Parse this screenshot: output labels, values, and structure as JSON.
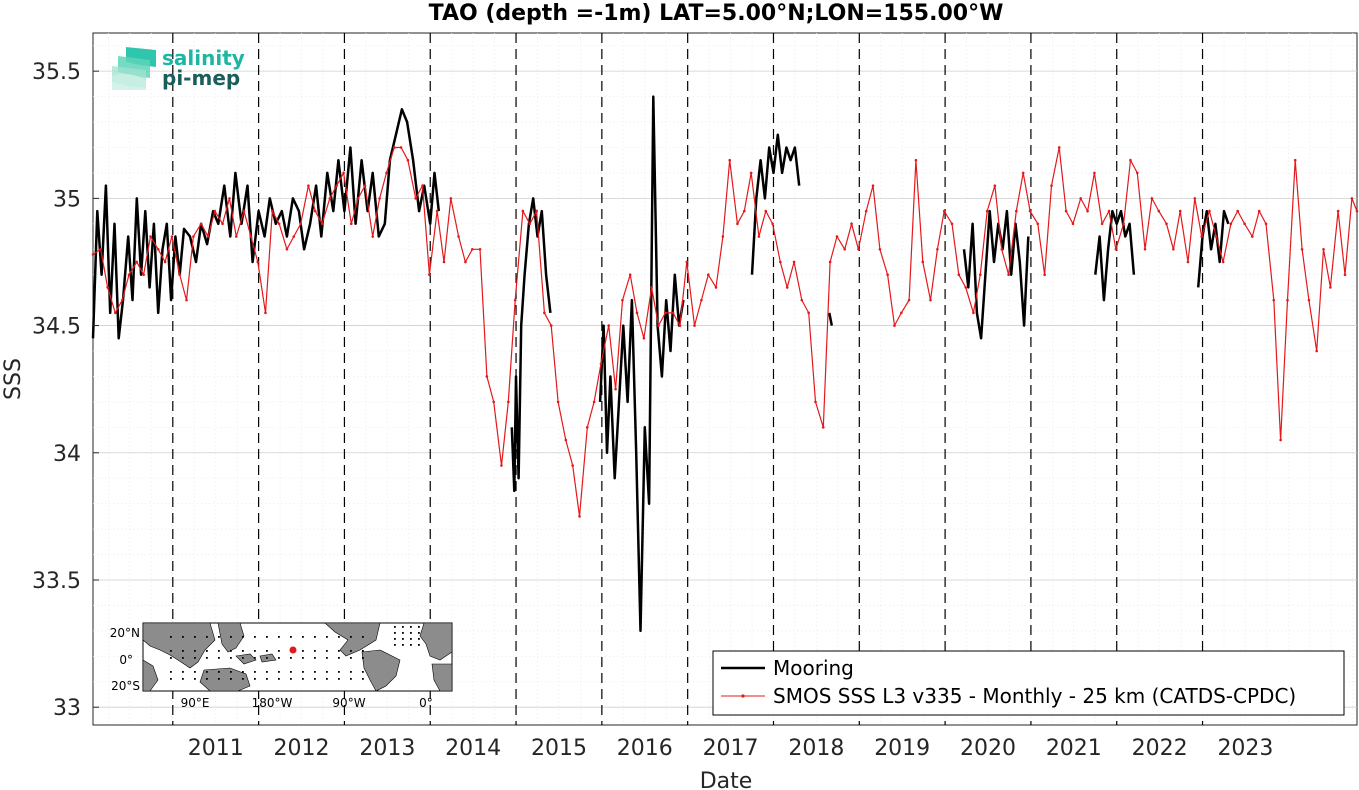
{
  "chart_data": {
    "type": "line",
    "title": "TAO (depth =-1m) LAT=5.00°N;LON=155.00°W",
    "xlabel": "Date",
    "ylabel": "SSS",
    "xlim": [
      2010.07,
      2024.8
    ],
    "ylim": [
      32.93,
      35.65
    ],
    "yticks": [
      33,
      33.5,
      34,
      34.5,
      35,
      35.5
    ],
    "xticks": [
      "2011",
      "2012",
      "2013",
      "2014",
      "2015",
      "2016",
      "2017",
      "2018",
      "2019",
      "2020",
      "2021",
      "2022",
      "2023"
    ],
    "grid": true,
    "legend_position": "bottom-right",
    "series": [
      {
        "name": "Mooring",
        "color": "#000000",
        "segments": [
          [
            [
              2010.07,
              34.45
            ],
            [
              2010.12,
              34.95
            ],
            [
              2010.17,
              34.7
            ],
            [
              2010.22,
              35.05
            ],
            [
              2010.27,
              34.55
            ],
            [
              2010.32,
              34.9
            ],
            [
              2010.37,
              34.45
            ],
            [
              2010.42,
              34.6
            ],
            [
              2010.48,
              34.85
            ],
            [
              2010.53,
              34.6
            ],
            [
              2010.58,
              35.0
            ],
            [
              2010.63,
              34.7
            ],
            [
              2010.68,
              34.95
            ],
            [
              2010.73,
              34.65
            ],
            [
              2010.78,
              34.9
            ],
            [
              2010.83,
              34.55
            ],
            [
              2010.88,
              34.8
            ],
            [
              2010.93,
              34.9
            ],
            [
              2010.98,
              34.6
            ],
            [
              2011.03,
              34.85
            ],
            [
              2011.08,
              34.7
            ],
            [
              2011.13,
              34.88
            ],
            [
              2011.2,
              34.85
            ],
            [
              2011.27,
              34.75
            ],
            [
              2011.33,
              34.9
            ],
            [
              2011.4,
              34.82
            ],
            [
              2011.47,
              34.95
            ],
            [
              2011.53,
              34.9
            ],
            [
              2011.6,
              35.05
            ],
            [
              2011.67,
              34.85
            ],
            [
              2011.73,
              35.1
            ],
            [
              2011.8,
              34.9
            ],
            [
              2011.87,
              35.05
            ],
            [
              2011.93,
              34.75
            ],
            [
              2012.0,
              34.95
            ],
            [
              2012.07,
              34.85
            ],
            [
              2012.13,
              35.0
            ],
            [
              2012.2,
              34.9
            ],
            [
              2012.27,
              34.95
            ],
            [
              2012.33,
              34.85
            ],
            [
              2012.4,
              35.0
            ],
            [
              2012.47,
              34.95
            ],
            [
              2012.53,
              34.8
            ],
            [
              2012.6,
              34.9
            ],
            [
              2012.67,
              35.05
            ],
            [
              2012.73,
              34.85
            ],
            [
              2012.8,
              35.1
            ],
            [
              2012.87,
              34.95
            ],
            [
              2012.93,
              35.15
            ],
            [
              2013.0,
              34.95
            ],
            [
              2013.07,
              35.2
            ],
            [
              2013.13,
              34.9
            ],
            [
              2013.2,
              35.15
            ],
            [
              2013.27,
              34.95
            ],
            [
              2013.33,
              35.1
            ],
            [
              2013.4,
              34.85
            ],
            [
              2013.47,
              34.9
            ],
            [
              2013.53,
              35.15
            ],
            [
              2013.6,
              35.25
            ],
            [
              2013.67,
              35.35
            ],
            [
              2013.73,
              35.3
            ],
            [
              2013.8,
              35.15
            ],
            [
              2013.87,
              34.95
            ],
            [
              2013.93,
              35.05
            ],
            [
              2014.0,
              34.9
            ],
            [
              2014.05,
              35.1
            ],
            [
              2014.1,
              34.95
            ]
          ],
          [
            [
              2014.95,
              34.1
            ],
            [
              2014.98,
              33.85
            ],
            [
              2015.0,
              34.3
            ],
            [
              2015.03,
              33.9
            ],
            [
              2015.06,
              34.5
            ],
            [
              2015.1,
              34.7
            ],
            [
              2015.15,
              34.9
            ],
            [
              2015.2,
              35.0
            ],
            [
              2015.25,
              34.85
            ],
            [
              2015.3,
              34.95
            ],
            [
              2015.35,
              34.7
            ],
            [
              2015.4,
              34.55
            ]
          ],
          [
            [
              2015.98,
              34.2
            ],
            [
              2016.02,
              34.5
            ],
            [
              2016.06,
              34.0
            ],
            [
              2016.1,
              34.3
            ],
            [
              2016.15,
              33.9
            ],
            [
              2016.2,
              34.2
            ],
            [
              2016.25,
              34.5
            ],
            [
              2016.3,
              34.2
            ],
            [
              2016.35,
              34.6
            ],
            [
              2016.4,
              34.0
            ],
            [
              2016.45,
              33.3
            ],
            [
              2016.5,
              34.1
            ],
            [
              2016.55,
              33.8
            ],
            [
              2016.6,
              35.4
            ],
            [
              2016.65,
              34.5
            ],
            [
              2016.7,
              34.3
            ],
            [
              2016.75,
              34.6
            ],
            [
              2016.8,
              34.4
            ],
            [
              2016.85,
              34.7
            ],
            [
              2016.9,
              34.5
            ],
            [
              2016.95,
              34.6
            ]
          ],
          [
            [
              2017.75,
              34.7
            ],
            [
              2017.8,
              35.0
            ],
            [
              2017.85,
              35.15
            ],
            [
              2017.9,
              35.0
            ],
            [
              2017.95,
              35.2
            ],
            [
              2018.0,
              35.1
            ],
            [
              2018.05,
              35.25
            ],
            [
              2018.1,
              35.1
            ],
            [
              2018.15,
              35.2
            ],
            [
              2018.2,
              35.15
            ],
            [
              2018.25,
              35.2
            ],
            [
              2018.3,
              35.05
            ]
          ],
          [
            [
              2018.65,
              34.55
            ],
            [
              2018.68,
              34.5
            ]
          ],
          [
            [
              2020.22,
              34.8
            ],
            [
              2020.27,
              34.65
            ],
            [
              2020.32,
              34.9
            ],
            [
              2020.37,
              34.55
            ],
            [
              2020.42,
              34.45
            ],
            [
              2020.47,
              34.7
            ],
            [
              2020.52,
              34.95
            ],
            [
              2020.57,
              34.75
            ],
            [
              2020.62,
              34.9
            ],
            [
              2020.67,
              34.8
            ],
            [
              2020.72,
              34.95
            ],
            [
              2020.77,
              34.7
            ],
            [
              2020.82,
              34.9
            ],
            [
              2020.87,
              34.75
            ],
            [
              2020.92,
              34.5
            ],
            [
              2020.97,
              34.85
            ]
          ],
          [
            [
              2021.75,
              34.7
            ],
            [
              2021.8,
              34.85
            ],
            [
              2021.85,
              34.6
            ],
            [
              2021.9,
              34.8
            ],
            [
              2021.95,
              34.95
            ],
            [
              2022.0,
              34.9
            ],
            [
              2022.05,
              34.95
            ],
            [
              2022.1,
              34.85
            ],
            [
              2022.15,
              34.9
            ],
            [
              2022.2,
              34.7
            ]
          ],
          [
            [
              2022.95,
              34.65
            ],
            [
              2023.0,
              34.85
            ],
            [
              2023.05,
              34.95
            ],
            [
              2023.1,
              34.8
            ],
            [
              2023.15,
              34.9
            ],
            [
              2023.2,
              34.75
            ],
            [
              2023.25,
              34.95
            ],
            [
              2023.3,
              34.9
            ]
          ]
        ]
      },
      {
        "name": "SMOS SSS L3 v335 - Monthly - 25 km (CATDS-CPDC)",
        "color": "#e4191c",
        "x": [
          2010.07,
          2010.16,
          2010.24,
          2010.33,
          2010.41,
          2010.49,
          2010.58,
          2010.66,
          2010.74,
          2010.83,
          2010.91,
          2010.99,
          2011.08,
          2011.16,
          2011.24,
          2011.33,
          2011.41,
          2011.49,
          2011.58,
          2011.66,
          2011.74,
          2011.83,
          2011.91,
          2011.99,
          2012.08,
          2012.16,
          2012.24,
          2012.33,
          2012.41,
          2012.49,
          2012.58,
          2012.66,
          2012.74,
          2012.83,
          2012.91,
          2012.99,
          2013.08,
          2013.16,
          2013.24,
          2013.33,
          2013.41,
          2013.49,
          2013.58,
          2013.66,
          2013.74,
          2013.83,
          2013.91,
          2013.99,
          2014.08,
          2014.16,
          2014.24,
          2014.33,
          2014.41,
          2014.49,
          2014.58,
          2014.66,
          2014.74,
          2014.83,
          2014.91,
          2014.99,
          2015.08,
          2015.16,
          2015.24,
          2015.33,
          2015.41,
          2015.49,
          2015.58,
          2015.66,
          2015.74,
          2015.83,
          2015.91,
          2015.99,
          2016.08,
          2016.16,
          2016.24,
          2016.33,
          2016.41,
          2016.49,
          2016.58,
          2016.66,
          2016.74,
          2016.83,
          2016.91,
          2016.99,
          2017.08,
          2017.16,
          2017.24,
          2017.33,
          2017.41,
          2017.49,
          2017.58,
          2017.66,
          2017.74,
          2017.83,
          2017.91,
          2017.99,
          2018.08,
          2018.16,
          2018.24,
          2018.33,
          2018.41,
          2018.49,
          2018.58,
          2018.66,
          2018.74,
          2018.83,
          2018.91,
          2018.99,
          2019.08,
          2019.16,
          2019.24,
          2019.33,
          2019.41,
          2019.49,
          2019.58,
          2019.66,
          2019.74,
          2019.83,
          2019.91,
          2019.99,
          2020.08,
          2020.16,
          2020.24,
          2020.33,
          2020.41,
          2020.49,
          2020.58,
          2020.66,
          2020.74,
          2020.83,
          2020.91,
          2020.99,
          2021.08,
          2021.16,
          2021.24,
          2021.33,
          2021.41,
          2021.49,
          2021.58,
          2021.66,
          2021.74,
          2021.83,
          2021.91,
          2021.99,
          2022.08,
          2022.16,
          2022.24,
          2022.33,
          2022.41,
          2022.49,
          2022.58,
          2022.66,
          2022.74,
          2022.83,
          2022.91,
          2022.99,
          2023.08,
          2023.16,
          2023.24,
          2023.33,
          2023.41,
          2023.49,
          2023.58,
          2023.66,
          2023.74,
          2023.83,
          2023.91,
          2023.99,
          2024.08,
          2024.16,
          2024.24,
          2024.33,
          2024.41,
          2024.49,
          2024.58,
          2024.66,
          2024.74,
          2024.8
        ],
        "y": [
          34.78,
          34.8,
          34.65,
          34.55,
          34.6,
          34.7,
          34.75,
          34.7,
          34.85,
          34.8,
          34.75,
          34.85,
          34.7,
          34.6,
          34.85,
          34.9,
          34.85,
          34.95,
          34.9,
          35.0,
          34.85,
          34.95,
          34.85,
          34.75,
          34.55,
          34.95,
          34.9,
          34.8,
          34.85,
          34.9,
          35.05,
          34.95,
          34.9,
          35.0,
          35.05,
          35.1,
          34.9,
          35.0,
          35.05,
          34.85,
          35.0,
          35.1,
          35.2,
          35.2,
          35.15,
          35.0,
          35.05,
          34.7,
          34.95,
          34.75,
          35.0,
          34.85,
          34.75,
          34.8,
          34.8,
          34.3,
          34.2,
          33.95,
          34.2,
          34.6,
          34.95,
          34.9,
          34.95,
          34.55,
          34.5,
          34.2,
          34.05,
          33.95,
          33.75,
          34.1,
          34.2,
          34.35,
          34.5,
          34.25,
          34.6,
          34.7,
          34.55,
          34.45,
          34.65,
          34.5,
          34.55,
          34.55,
          34.5,
          34.75,
          34.5,
          34.6,
          34.7,
          34.65,
          34.85,
          35.15,
          34.9,
          34.95,
          35.1,
          34.85,
          34.95,
          34.9,
          34.75,
          34.65,
          34.75,
          34.6,
          34.55,
          34.2,
          34.1,
          34.75,
          34.85,
          34.8,
          34.9,
          34.8,
          34.95,
          35.05,
          34.8,
          34.7,
          34.5,
          34.55,
          34.6,
          35.15,
          34.75,
          34.6,
          34.8,
          34.95,
          34.9,
          34.7,
          34.65,
          34.55,
          34.7,
          34.95,
          35.05,
          34.8,
          34.7,
          34.95,
          35.1,
          34.95,
          34.9,
          34.7,
          35.05,
          35.2,
          34.95,
          34.9,
          35.0,
          34.95,
          35.1,
          34.9,
          34.95,
          34.8,
          34.9,
          35.15,
          35.1,
          34.8,
          35.0,
          34.95,
          34.9,
          34.8,
          34.95,
          34.75,
          35.0,
          34.85,
          34.95,
          34.85,
          34.75,
          34.9,
          34.95,
          34.9,
          34.85,
          34.95,
          34.9,
          34.6,
          34.05,
          34.6,
          35.15,
          34.8,
          34.6,
          34.4,
          34.8,
          34.65,
          34.95,
          34.7,
          35.0,
          34.95
        ]
      }
    ]
  },
  "logo": {
    "line1": "salinity",
    "line2": "pi-mep"
  },
  "inset_map": {
    "lat_ticks": [
      "20°N",
      "0°",
      "20°S"
    ],
    "lon_ticks": [
      "90°E",
      "180°W",
      "90°W",
      "0°"
    ],
    "marker_color": "#e4191c"
  }
}
